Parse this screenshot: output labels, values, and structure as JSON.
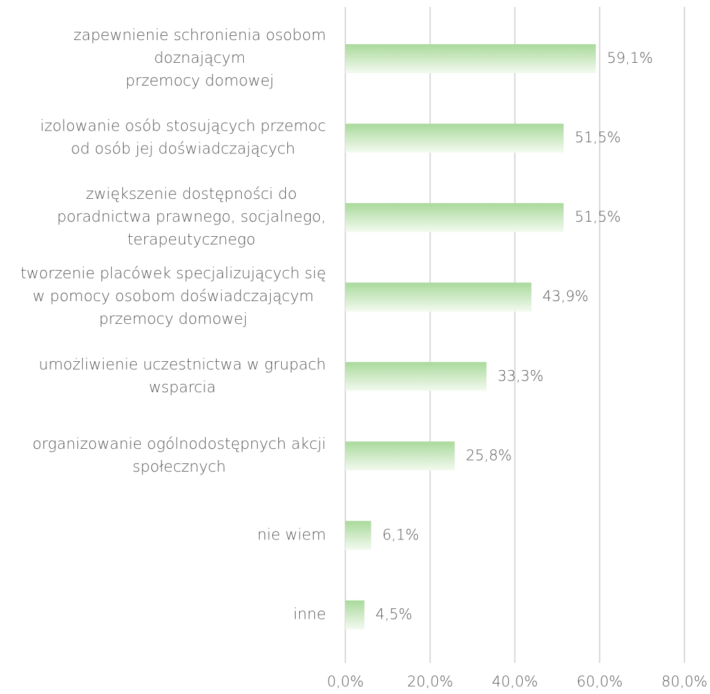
{
  "chart_data": {
    "type": "barh",
    "categories": [
      [
        "zapewnienie schronienia osobom",
        "doznającym",
        "przemocy domowej"
      ],
      [
        "izolowanie osób stosujących przemoc",
        "od osób jej doświadczających"
      ],
      [
        "zwiększenie dostępności do",
        "poradnictwa prawnego, socjalnego,",
        "terapeutycznego"
      ],
      [
        "tworzenie placówek specjalizujących się",
        "w pomocy osobom doświadczającym",
        "przemocy domowej"
      ],
      [
        "umożliwienie uczestnictwa w grupach",
        "wsparcia"
      ],
      [
        "organizowanie ogólnodostępnych akcji",
        "społecznych"
      ],
      [
        "nie wiem"
      ],
      [
        "inne"
      ]
    ],
    "values": [
      59.1,
      51.5,
      51.5,
      43.9,
      33.3,
      25.8,
      6.1,
      4.5
    ],
    "value_labels": [
      "59,1%",
      "51,5%",
      "51,5%",
      "43,9%",
      "33,3%",
      "25,8%",
      "6,1%",
      "4,5%"
    ],
    "color": "#a9d99b",
    "xlim": [
      0,
      80
    ],
    "xticks": [
      {
        "value": 0,
        "label": "0,0%"
      },
      {
        "value": 20,
        "label": "20,0%"
      },
      {
        "value": 40,
        "label": "40,0%"
      },
      {
        "value": 60,
        "label": "60,0%"
      },
      {
        "value": 80,
        "label": "80,0%"
      }
    ],
    "grid": true
  }
}
